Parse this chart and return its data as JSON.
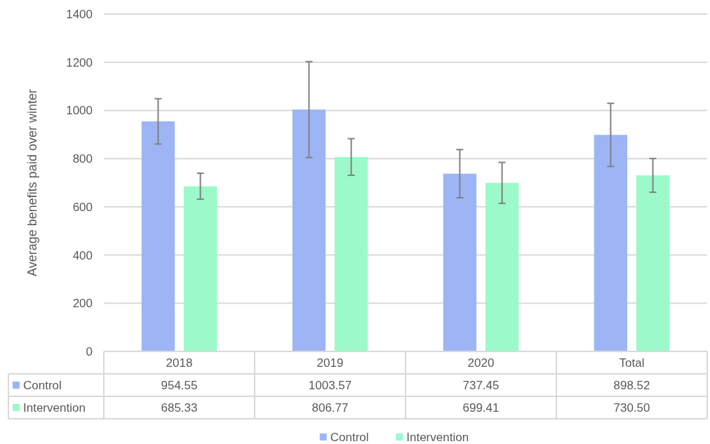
{
  "chart_data": {
    "type": "bar",
    "ylabel": "Average benefits paid over winter",
    "categories": [
      "2018",
      "2019",
      "2020",
      "Total"
    ],
    "series": [
      {
        "name": "Control",
        "color": "#9db5f5",
        "values": [
          954.55,
          1003.57,
          737.45,
          898.52
        ],
        "value_labels": [
          "954.55",
          "1003.57",
          "737.45",
          "898.52"
        ],
        "errors": [
          94,
          199,
          100,
          131
        ]
      },
      {
        "name": "Intervention",
        "color": "#9cf9c9",
        "values": [
          685.33,
          806.77,
          699.41,
          730.5
        ],
        "value_labels": [
          "685.33",
          "806.77",
          "699.41",
          "730.50"
        ],
        "errors": [
          54,
          76,
          85,
          70
        ]
      }
    ],
    "ylim": [
      0,
      1400
    ],
    "yticks": [
      0,
      200,
      400,
      600,
      800,
      1000,
      1200,
      1400
    ],
    "grid": "y",
    "legend": "bottom"
  }
}
